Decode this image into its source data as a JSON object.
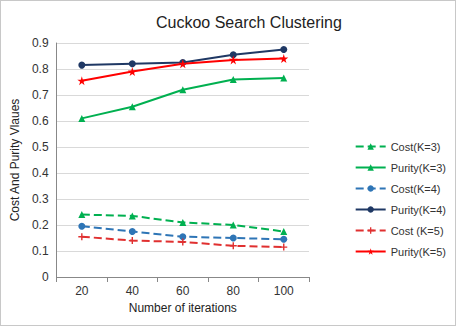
{
  "chart_data": {
    "type": "line",
    "title": "Cuckoo Search Clustering",
    "x_label": "Number of iterations",
    "y_label": "Cost And Purity Vlaues",
    "categories": [
      20,
      40,
      60,
      80,
      100
    ],
    "series": [
      {
        "name": "Cost(K=3)",
        "color": "#00b050",
        "marker": "triangle",
        "line_style": "dashed",
        "values": [
          0.24,
          0.235,
          0.21,
          0.2,
          0.175
        ]
      },
      {
        "name": "Purity(K=3)",
        "color": "#00b050",
        "marker": "triangle",
        "line_style": "solid",
        "values": [
          0.61,
          0.655,
          0.72,
          0.76,
          0.765
        ]
      },
      {
        "name": "Cost(K=4)",
        "color": "#2e75b6",
        "marker": "circle",
        "line_style": "dashed",
        "values": [
          0.195,
          0.175,
          0.155,
          0.15,
          0.145
        ]
      },
      {
        "name": "Purity(K=4)",
        "color": "#1f3864",
        "marker": "circle",
        "line_style": "solid",
        "values": [
          0.815,
          0.82,
          0.825,
          0.855,
          0.875
        ]
      },
      {
        "name": "Cost (K=5)",
        "color": "#e03030",
        "marker": "plus",
        "line_style": "dashed",
        "values": [
          0.155,
          0.14,
          0.135,
          0.12,
          0.115
        ]
      },
      {
        "name": "Purity(K=5)",
        "color": "#ff0000",
        "marker": "star",
        "line_style": "solid",
        "values": [
          0.755,
          0.79,
          0.82,
          0.835,
          0.84
        ]
      }
    ],
    "ylim": [
      0,
      0.9
    ],
    "yticks": [
      0,
      0.1,
      0.2,
      0.3,
      0.4,
      0.5,
      0.6,
      0.7,
      0.8,
      0.9
    ],
    "grid": true,
    "legend": "right"
  }
}
